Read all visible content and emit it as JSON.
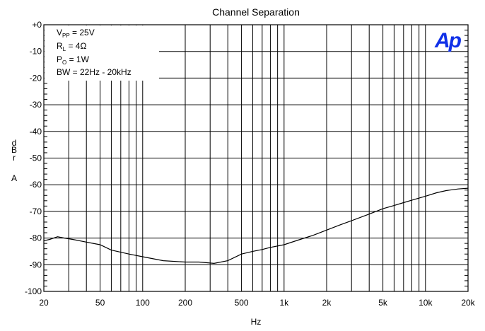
{
  "chart_data": {
    "type": "line",
    "title": "Channel Separation",
    "xlabel": "Hz",
    "ylabel_chars": [
      "d",
      "B",
      "r",
      "A"
    ],
    "x_scale": "log",
    "xlim": [
      20,
      20000
    ],
    "ylim": [
      -100,
      0
    ],
    "grid": true,
    "x_ticks": [
      20,
      50,
      100,
      200,
      500,
      1000,
      2000,
      5000,
      10000,
      20000
    ],
    "x_tick_labels": [
      "20",
      "50",
      "100",
      "200",
      "500",
      "1k",
      "2k",
      "5k",
      "10k",
      "20k"
    ],
    "y_ticks": [
      0,
      -10,
      -20,
      -30,
      -40,
      -50,
      -60,
      -70,
      -80,
      -90,
      -100
    ],
    "y_tick_labels": [
      "+0",
      "-10",
      "-20",
      "-30",
      "-40",
      "-50",
      "-60",
      "-70",
      "-80",
      "-90",
      "-100"
    ],
    "annotations": [
      {
        "main": "V",
        "sub": "PP",
        "rest": " = 25V"
      },
      {
        "main": "R",
        "sub": "L",
        "rest": " = 4Ω"
      },
      {
        "main": "P",
        "sub": "O",
        "rest": " = 1W"
      },
      {
        "main": "BW = 22Hz - 20kHz",
        "sub": "",
        "rest": ""
      }
    ],
    "logo_text": "Ap",
    "series": [
      {
        "x": [
          20,
          22,
          25,
          28,
          32,
          40,
          50,
          60,
          80,
          100,
          140,
          200,
          250,
          320,
          400,
          500,
          600,
          700,
          800,
          1000,
          1300,
          1600,
          2000,
          2500,
          3000,
          4000,
          5000,
          6000,
          7000,
          8000,
          10000,
          12000,
          14000,
          17000,
          20000
        ],
        "y": [
          -81,
          -80.5,
          -79.5,
          -80,
          -80.5,
          -81.5,
          -82.5,
          -84.5,
          -86,
          -87,
          -88.5,
          -89,
          -89,
          -89.5,
          -88.5,
          -86,
          -85,
          -84.3,
          -83.5,
          -82.5,
          -80.5,
          -79,
          -77,
          -75,
          -73.5,
          -71,
          -69,
          -67.8,
          -66.7,
          -65.8,
          -64.3,
          -63,
          -62.2,
          -61.6,
          -61.3
        ]
      }
    ]
  },
  "colors": {
    "axis": "#000000",
    "grid": "#000000",
    "line": "#000000",
    "logo": "#1030e8"
  }
}
